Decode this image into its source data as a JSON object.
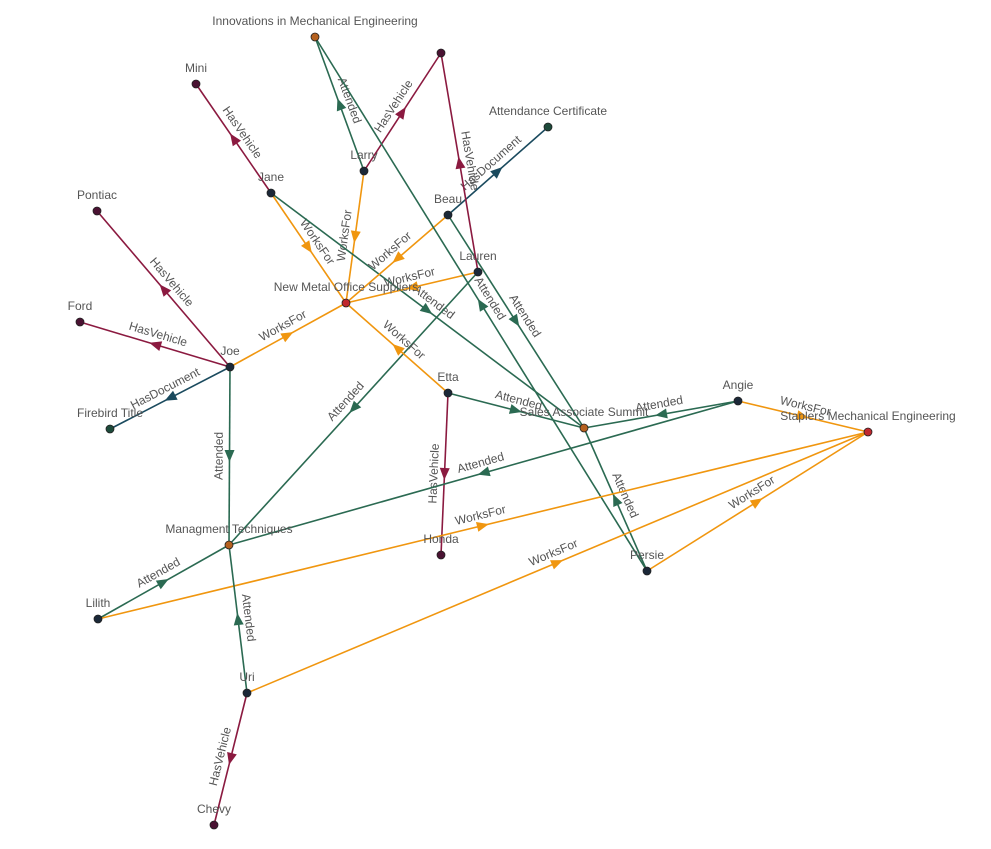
{
  "nodes": [
    {
      "label": "Innovations in Mechanical Engineering",
      "color": "#b5611f"
    },
    {
      "label": null,
      "color": "#4a1232"
    },
    {
      "label": "Mini",
      "color": "#4a1232"
    },
    {
      "label": "Attendance Certificate",
      "color": "#1d4a3a"
    },
    {
      "label": "Larry",
      "color": "#1b2838"
    },
    {
      "label": "Jane",
      "color": "#1b2838"
    },
    {
      "label": "Pontiac",
      "color": "#4a1232"
    },
    {
      "label": "Beau",
      "color": "#1b2838"
    },
    {
      "label": "Lauren",
      "color": "#1b2838"
    },
    {
      "label": "New Metal Office Suppliers",
      "color": "#c0282e"
    },
    {
      "label": "Ford",
      "color": "#4a1232"
    },
    {
      "label": "Joe",
      "color": "#1b2838"
    },
    {
      "label": "Etta",
      "color": "#1b2838"
    },
    {
      "label": "Angie",
      "color": "#1b2838"
    },
    {
      "label": "Sales Associate Summit",
      "color": "#b5611f"
    },
    {
      "label": "Staplers Mechanical Engineering",
      "color": "#c0282e"
    },
    {
      "label": "Firebird Title",
      "color": "#1d4a3a"
    },
    {
      "label": "Managment Techniques",
      "color": "#b5611f"
    },
    {
      "label": "Honda",
      "color": "#4a1232"
    },
    {
      "label": "Persie",
      "color": "#1b2838"
    },
    {
      "label": "Lilith",
      "color": "#1b2838"
    },
    {
      "label": "Uri",
      "color": "#1b2838"
    },
    {
      "label": "Chevy",
      "color": "#4a1232"
    }
  ],
  "edges": [
    {
      "source": 5,
      "target": 2,
      "label": "HasVehicle",
      "color": "#8b1a40"
    },
    {
      "source": 4,
      "target": 1,
      "label": "HasVehicle",
      "color": "#8b1a40"
    },
    {
      "source": 4,
      "target": 0,
      "label": "Attended",
      "color": "#2b6a52"
    },
    {
      "source": 4,
      "target": 9,
      "label": "WorksFor",
      "color": "#f0960f"
    },
    {
      "source": 5,
      "target": 9,
      "label": "WorksFor",
      "color": "#f0960f"
    },
    {
      "source": 5,
      "target": 14,
      "label": "Attended",
      "color": "#2b6a52"
    },
    {
      "source": 7,
      "target": 3,
      "label": "HasDocument",
      "color": "#1a4a5e"
    },
    {
      "source": 7,
      "target": 9,
      "label": "WorksFor",
      "color": "#f0960f"
    },
    {
      "source": 7,
      "target": 14,
      "label": "Attended",
      "color": "#2b6a52"
    },
    {
      "source": 8,
      "target": 1,
      "label": "HasVehicle",
      "color": "#8b1a40"
    },
    {
      "source": 8,
      "target": 9,
      "label": "WorksFor",
      "color": "#f0960f"
    },
    {
      "source": 8,
      "target": 17,
      "label": "Attended",
      "color": "#2b6a52"
    },
    {
      "source": 11,
      "target": 6,
      "label": "HasVehicle",
      "color": "#8b1a40"
    },
    {
      "source": 11,
      "target": 10,
      "label": "HasVehicle",
      "color": "#8b1a40"
    },
    {
      "source": 11,
      "target": 16,
      "label": "HasDocument",
      "color": "#1a4a5e"
    },
    {
      "source": 11,
      "target": 9,
      "label": "WorksFor",
      "color": "#f0960f"
    },
    {
      "source": 11,
      "target": 17,
      "label": "Attended",
      "color": "#2b6a52"
    },
    {
      "source": 12,
      "target": 9,
      "label": "WorksFor",
      "color": "#f0960f"
    },
    {
      "source": 12,
      "target": 14,
      "label": "Attended",
      "color": "#2b6a52"
    },
    {
      "source": 12,
      "target": 18,
      "label": "HasVehicle",
      "color": "#8b1a40"
    },
    {
      "source": 13,
      "target": 17,
      "label": "Attended",
      "color": "#2b6a52"
    },
    {
      "source": 13,
      "target": 14,
      "label": "Attended",
      "color": "#2b6a52"
    },
    {
      "source": 13,
      "target": 15,
      "label": "WorksFor",
      "color": "#f0960f"
    },
    {
      "source": 19,
      "target": 0,
      "label": "Attended",
      "color": "#2b6a52"
    },
    {
      "source": 19,
      "target": 14,
      "label": "Attended",
      "color": "#2b6a52"
    },
    {
      "source": 19,
      "target": 15,
      "label": "WorksFor",
      "color": "#f0960f"
    },
    {
      "source": 20,
      "target": 17,
      "label": "Attended",
      "color": "#2b6a52"
    },
    {
      "source": 20,
      "target": 15,
      "label": "WorksFor",
      "color": "#f0960f"
    },
    {
      "source": 21,
      "target": 17,
      "label": "Attended",
      "color": "#2b6a52"
    },
    {
      "source": 21,
      "target": 15,
      "label": "WorksFor",
      "color": "#f0960f"
    },
    {
      "source": 21,
      "target": 22,
      "label": "HasVehicle",
      "color": "#8b1a40"
    }
  ]
}
